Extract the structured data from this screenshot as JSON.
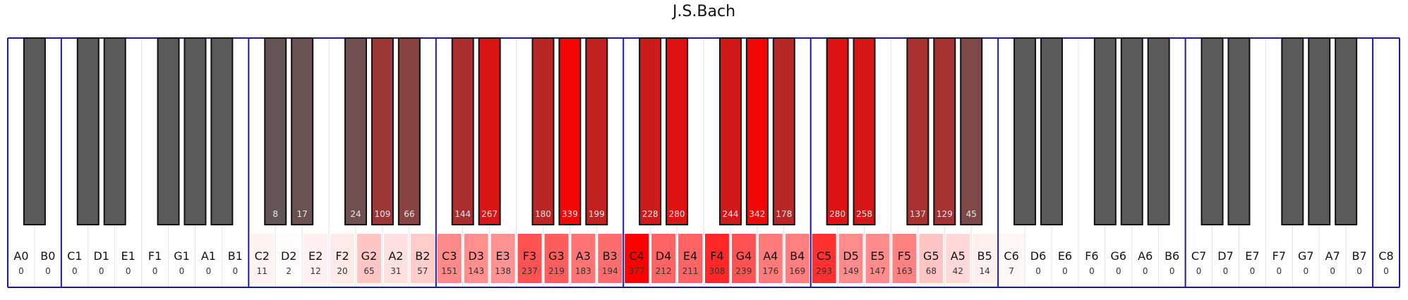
{
  "title": "J.S.Bach",
  "chart_data": {
    "type": "heatmap",
    "title": "J.S.Bach",
    "colorscale": [
      "#ffffff",
      "#ff0000"
    ],
    "black_key_base_color": "#5a5a5a",
    "octave_line_color": "#1a1aa0",
    "white_keys": [
      {
        "note": "A0",
        "count": 0
      },
      {
        "note": "B0",
        "count": 0
      },
      {
        "note": "C1",
        "count": 0
      },
      {
        "note": "D1",
        "count": 0
      },
      {
        "note": "E1",
        "count": 0
      },
      {
        "note": "F1",
        "count": 0
      },
      {
        "note": "G1",
        "count": 0
      },
      {
        "note": "A1",
        "count": 0
      },
      {
        "note": "B1",
        "count": 0
      },
      {
        "note": "C2",
        "count": 11
      },
      {
        "note": "D2",
        "count": 2
      },
      {
        "note": "E2",
        "count": 12
      },
      {
        "note": "F2",
        "count": 20
      },
      {
        "note": "G2",
        "count": 65
      },
      {
        "note": "A2",
        "count": 31
      },
      {
        "note": "B2",
        "count": 57
      },
      {
        "note": "C3",
        "count": 151
      },
      {
        "note": "D3",
        "count": 143
      },
      {
        "note": "E3",
        "count": 138
      },
      {
        "note": "F3",
        "count": 237
      },
      {
        "note": "G3",
        "count": 219
      },
      {
        "note": "A3",
        "count": 183
      },
      {
        "note": "B3",
        "count": 194
      },
      {
        "note": "C4",
        "count": 377
      },
      {
        "note": "D4",
        "count": 212
      },
      {
        "note": "E4",
        "count": 211
      },
      {
        "note": "F4",
        "count": 308
      },
      {
        "note": "G4",
        "count": 239
      },
      {
        "note": "A4",
        "count": 176
      },
      {
        "note": "B4",
        "count": 169
      },
      {
        "note": "C5",
        "count": 293
      },
      {
        "note": "D5",
        "count": 149
      },
      {
        "note": "E5",
        "count": 147
      },
      {
        "note": "F5",
        "count": 163
      },
      {
        "note": "G5",
        "count": 68
      },
      {
        "note": "A5",
        "count": 42
      },
      {
        "note": "B5",
        "count": 14
      },
      {
        "note": "C6",
        "count": 7
      },
      {
        "note": "D6",
        "count": 0
      },
      {
        "note": "E6",
        "count": 0
      },
      {
        "note": "F6",
        "count": 0
      },
      {
        "note": "G6",
        "count": 0
      },
      {
        "note": "A6",
        "count": 0
      },
      {
        "note": "B6",
        "count": 0
      },
      {
        "note": "C7",
        "count": 0
      },
      {
        "note": "D7",
        "count": 0
      },
      {
        "note": "E7",
        "count": 0
      },
      {
        "note": "F7",
        "count": 0
      },
      {
        "note": "G7",
        "count": 0
      },
      {
        "note": "A7",
        "count": 0
      },
      {
        "note": "B7",
        "count": 0
      },
      {
        "note": "C8",
        "count": 0
      }
    ],
    "black_keys": [
      {
        "after": "A0",
        "count": 0
      },
      {
        "after": "C1",
        "count": 0
      },
      {
        "after": "D1",
        "count": 0
      },
      {
        "after": "F1",
        "count": 0
      },
      {
        "after": "G1",
        "count": 0
      },
      {
        "after": "A1",
        "count": 0
      },
      {
        "after": "C2",
        "count": 8
      },
      {
        "after": "D2",
        "count": 17
      },
      {
        "after": "F2",
        "count": 24
      },
      {
        "after": "G2",
        "count": 109
      },
      {
        "after": "A2",
        "count": 66
      },
      {
        "after": "C3",
        "count": 144
      },
      {
        "after": "D3",
        "count": 267
      },
      {
        "after": "F3",
        "count": 180
      },
      {
        "after": "G3",
        "count": 339
      },
      {
        "after": "A3",
        "count": 199
      },
      {
        "after": "C4",
        "count": 228
      },
      {
        "after": "D4",
        "count": 280
      },
      {
        "after": "F4",
        "count": 244
      },
      {
        "after": "G4",
        "count": 342
      },
      {
        "after": "A4",
        "count": 178
      },
      {
        "after": "C5",
        "count": 280
      },
      {
        "after": "D5",
        "count": 258
      },
      {
        "after": "F5",
        "count": 137
      },
      {
        "after": "G5",
        "count": 129
      },
      {
        "after": "A5",
        "count": 45
      },
      {
        "after": "C6",
        "count": 0
      },
      {
        "after": "D6",
        "count": 0
      },
      {
        "after": "F6",
        "count": 0
      },
      {
        "after": "G6",
        "count": 0
      },
      {
        "after": "A6",
        "count": 0
      },
      {
        "after": "C7",
        "count": 0
      },
      {
        "after": "D7",
        "count": 0
      },
      {
        "after": "F7",
        "count": 0
      },
      {
        "after": "G7",
        "count": 0
      },
      {
        "after": "A7",
        "count": 0
      }
    ]
  }
}
